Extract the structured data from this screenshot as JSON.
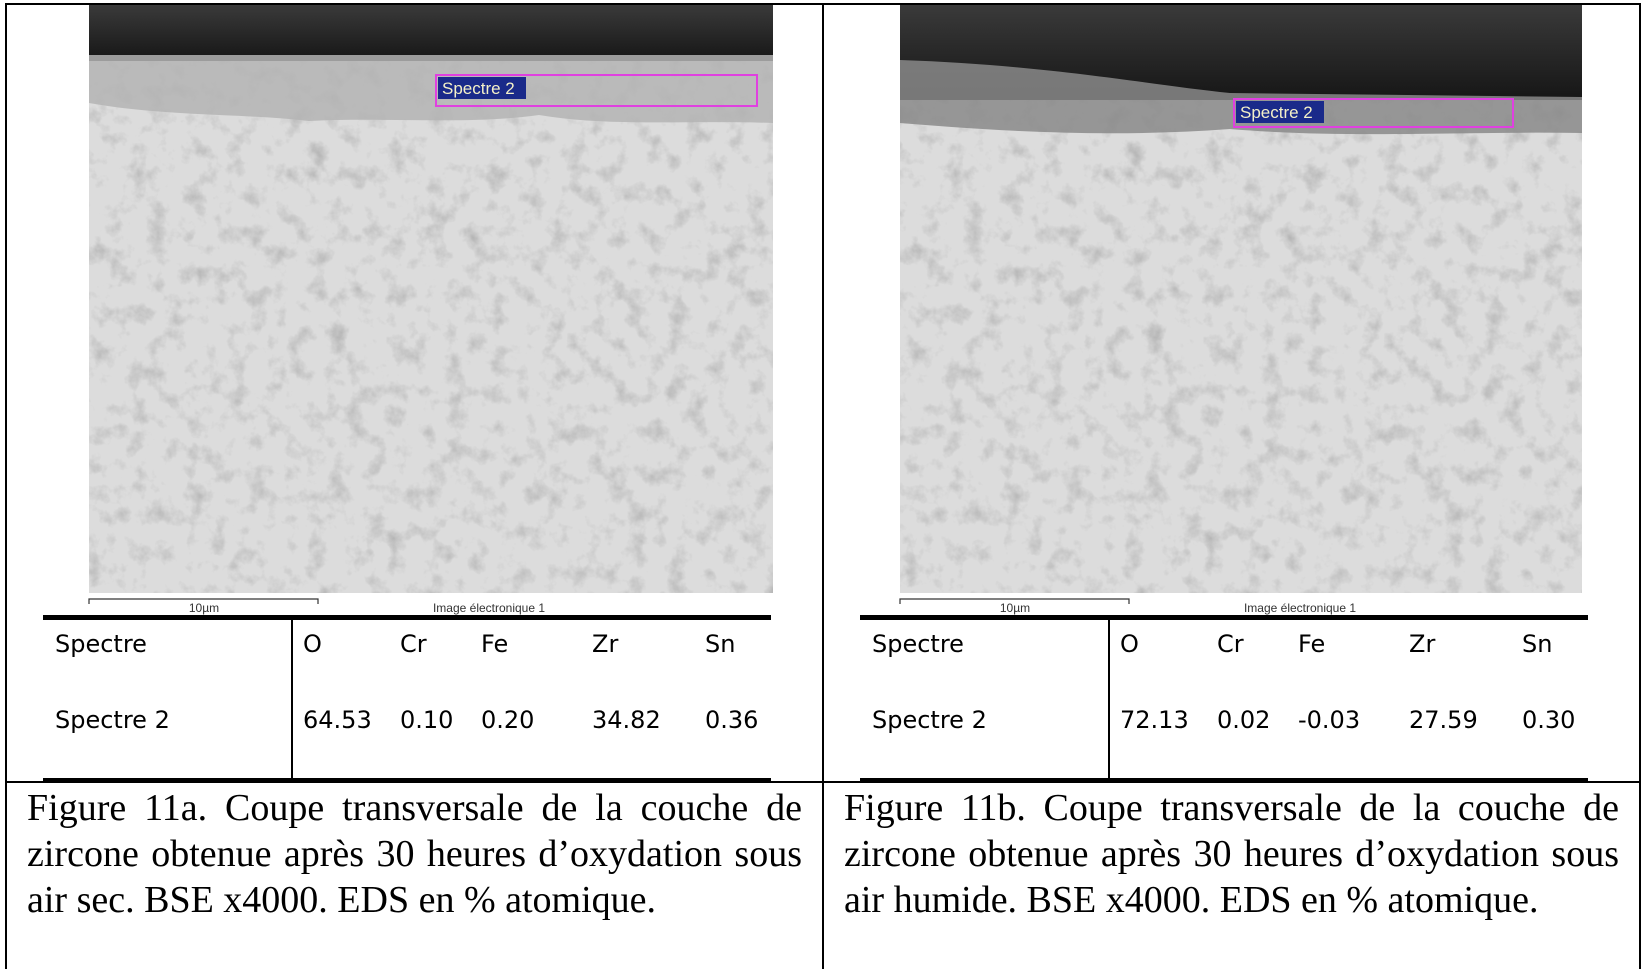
{
  "panels": [
    {
      "image": {
        "spectrum_label": "Spectre 2",
        "scale_label": "10µm",
        "image_label": "Image électronique 1"
      },
      "table": {
        "header": [
          "Spectre",
          "O",
          "Cr",
          "Fe",
          "Zr",
          "Sn"
        ],
        "rows": [
          [
            "Spectre 2",
            "64.53",
            "0.10",
            "0.20",
            "34.82",
            "0.36"
          ]
        ]
      },
      "caption": "Figure 11a. Coupe transversale de la couche de zircone obtenue après 30 heures d’oxydation sous air sec. BSE x4000. EDS en % atomique."
    },
    {
      "image": {
        "spectrum_label": "Spectre 2",
        "scale_label": "10µm",
        "image_label": "Image électronique 1"
      },
      "table": {
        "header": [
          "Spectre",
          "O",
          "Cr",
          "Fe",
          "Zr",
          "Sn"
        ],
        "rows": [
          [
            "Spectre 2",
            "72.13",
            "0.02",
            "-0.03",
            "27.59",
            "0.30"
          ]
        ]
      },
      "caption": "Figure 11b. Coupe transversale de la couche de zircone obtenue après 30 heures d’oxydation sous air humide. BSE x4000. EDS en % atomique."
    }
  ]
}
